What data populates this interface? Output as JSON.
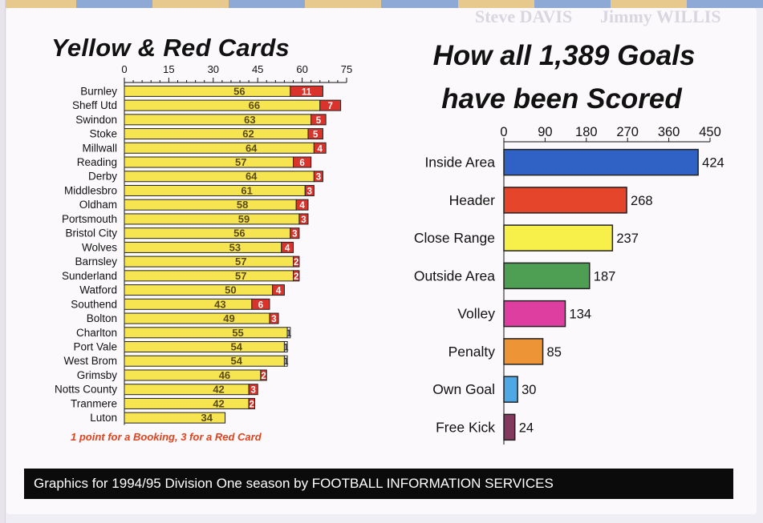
{
  "caption": "Graphics for 1994/95 Division One season by FOOTBALL INFORMATION SERVICES",
  "background_text": [
    "Steve DAVIS",
    "Jimmy WILLIS"
  ],
  "colors": {
    "card_bar": "#f6e451",
    "red_card": "#d9332b",
    "accent_red_text": "#e0431e",
    "footer_bg": "#0b0b0b"
  },
  "chart_data": [
    {
      "type": "bar",
      "orientation": "horizontal",
      "title": "Yellow & Red Cards",
      "note": "1 point for a Booking, 3 for a Red Card",
      "xlim": [
        0,
        75
      ],
      "xticks": [
        0,
        15,
        30,
        45,
        60,
        75
      ],
      "categories": [
        "Burnley",
        "Sheff Utd",
        "Swindon",
        "Stoke",
        "Millwall",
        "Reading",
        "Derby",
        "Middlesbro",
        "Oldham",
        "Portsmouth",
        "Bristol City",
        "Wolves",
        "Barnsley",
        "Sunderland",
        "Watford",
        "Southend",
        "Bolton",
        "Charlton",
        "Port Vale",
        "West Brom",
        "Grimsby",
        "Notts County",
        "Tranmere",
        "Luton"
      ],
      "series": [
        {
          "values": [
            56,
            66,
            63,
            62,
            64,
            57,
            64,
            61,
            58,
            59,
            56,
            53,
            57,
            57,
            50,
            43,
            49,
            55,
            54,
            54,
            46,
            42,
            42,
            34
          ]
        },
        {
          "values": [
            11,
            7,
            5,
            5,
            4,
            6,
            3,
            3,
            4,
            3,
            3,
            4,
            2,
            2,
            4,
            6,
            3,
            1,
            1,
            1,
            2,
            3,
            2,
            null
          ]
        }
      ],
      "stacked": true
    },
    {
      "type": "bar",
      "orientation": "horizontal",
      "title_lines": [
        "How all 1,389 Goals",
        "have been Scored"
      ],
      "xlim": [
        0,
        450
      ],
      "xticks": [
        0,
        90,
        180,
        270,
        360,
        450
      ],
      "categories": [
        "Inside Area",
        "Header",
        "Close Range",
        "Outside Area",
        "Volley",
        "Penalty",
        "Own Goal",
        "Free Kick"
      ],
      "values": [
        424,
        268,
        237,
        187,
        134,
        85,
        30,
        24
      ],
      "colors": [
        "#2f62c4",
        "#e5452a",
        "#f7ef4a",
        "#4e9e54",
        "#de3ea0",
        "#ed9436",
        "#4ea8e6",
        "#83385d"
      ]
    }
  ]
}
